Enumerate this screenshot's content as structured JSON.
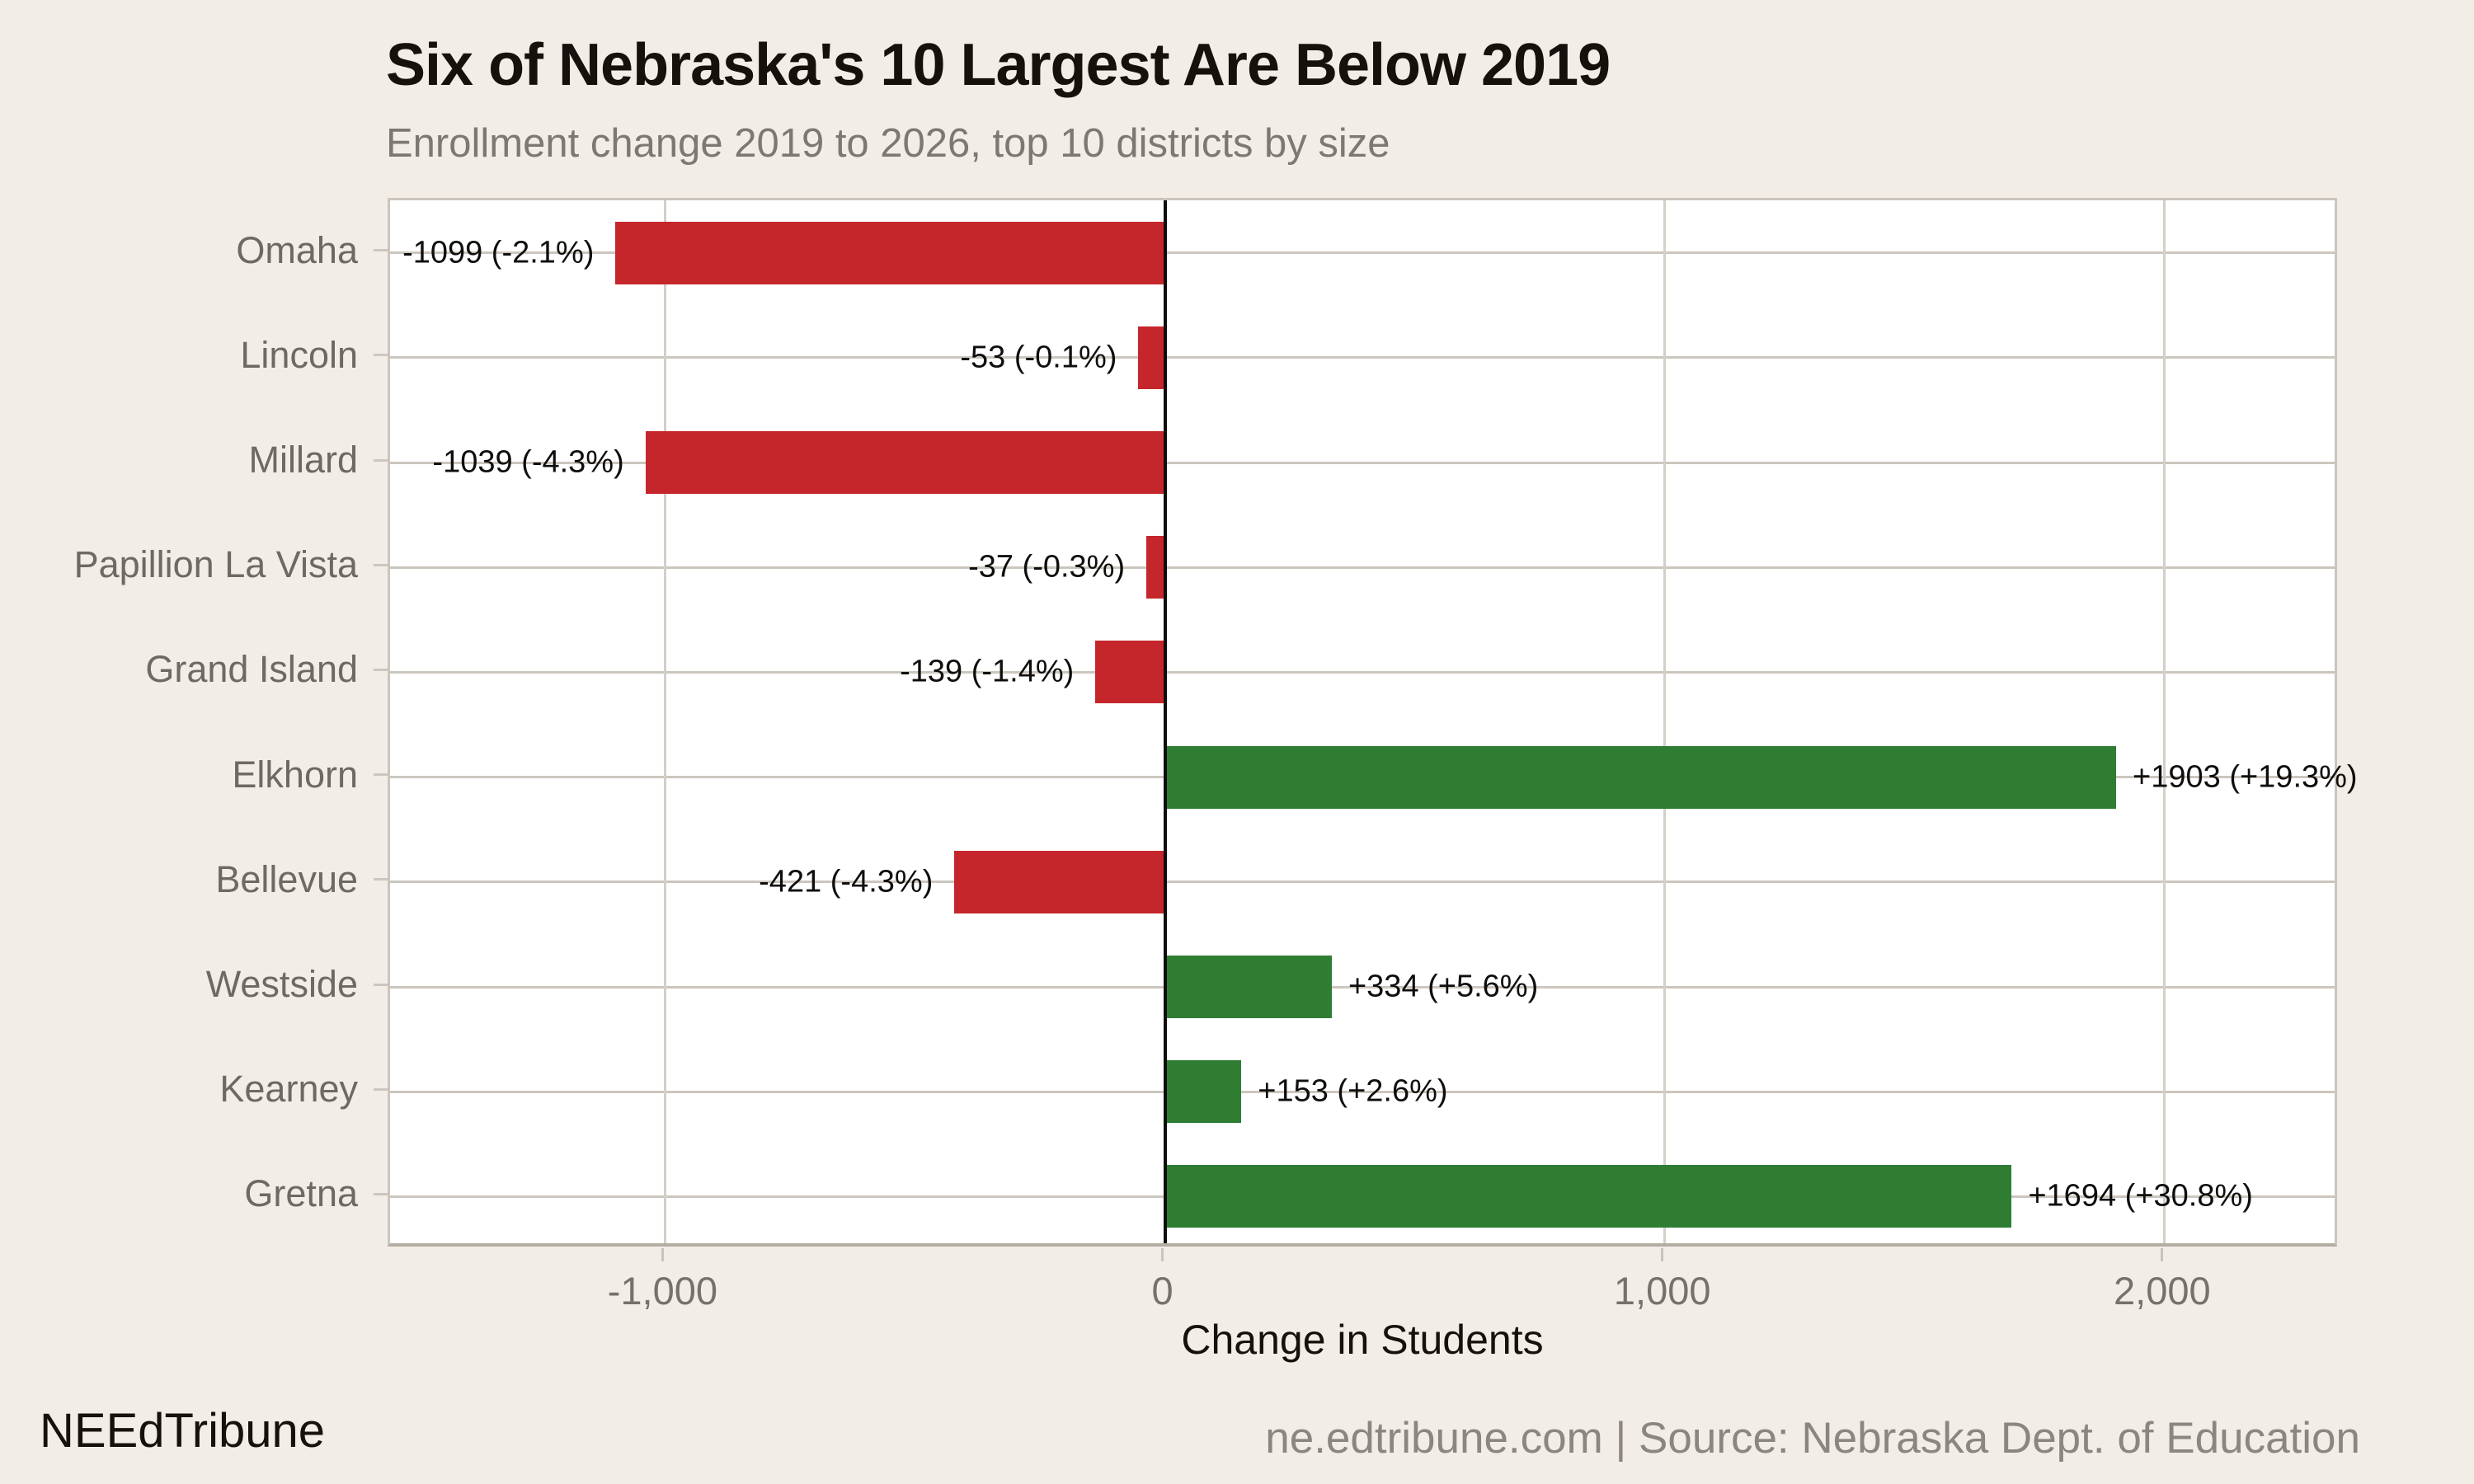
{
  "title": "Six of Nebraska's 10 Largest Are Below 2019",
  "subtitle": "Enrollment change 2019 to 2026, top 10 districts by size",
  "footer": {
    "brand": "NEEdTribune",
    "source": "ne.edtribune.com | Source: Nebraska Dept. of Education"
  },
  "chart_data": {
    "type": "bar",
    "orientation": "horizontal",
    "title": "Six of Nebraska's 10 Largest Are Below 2019",
    "subtitle": "Enrollment change 2019 to 2026, top 10 districts by size",
    "categories": [
      "Omaha",
      "Lincoln",
      "Millard",
      "Papillion La Vista",
      "Grand Island",
      "Elkhorn",
      "Bellevue",
      "Westside",
      "Kearney",
      "Gretna"
    ],
    "values": [
      -1099,
      -53,
      -1039,
      -37,
      -139,
      1903,
      -421,
      334,
      153,
      1694
    ],
    "pct_change": [
      -2.1,
      -0.1,
      -4.3,
      -0.3,
      -1.4,
      19.3,
      -4.3,
      5.6,
      2.6,
      30.8
    ],
    "bar_labels": [
      "-1099 (-2.1%)",
      "-53 (-0.1%)",
      "-1039 (-4.3%)",
      "-37 (-0.3%)",
      "-139 (-1.4%)",
      "+1903 (+19.3%)",
      "-421 (-4.3%)",
      "+334 (+5.6%)",
      "+153 (+2.6%)",
      "+1694 (+30.8%)"
    ],
    "xlabel": "Change in Students",
    "ylabel": "",
    "xlim": [
      -1550,
      2350
    ],
    "x_ticks": [
      -1000,
      0,
      1000,
      2000
    ],
    "x_tick_labels": [
      "-1,000",
      "0",
      "1,000",
      "2,000"
    ],
    "grid": true,
    "legend_position": "none",
    "colors": {
      "negative": "#c5262b",
      "positive": "#2e7d33"
    }
  }
}
